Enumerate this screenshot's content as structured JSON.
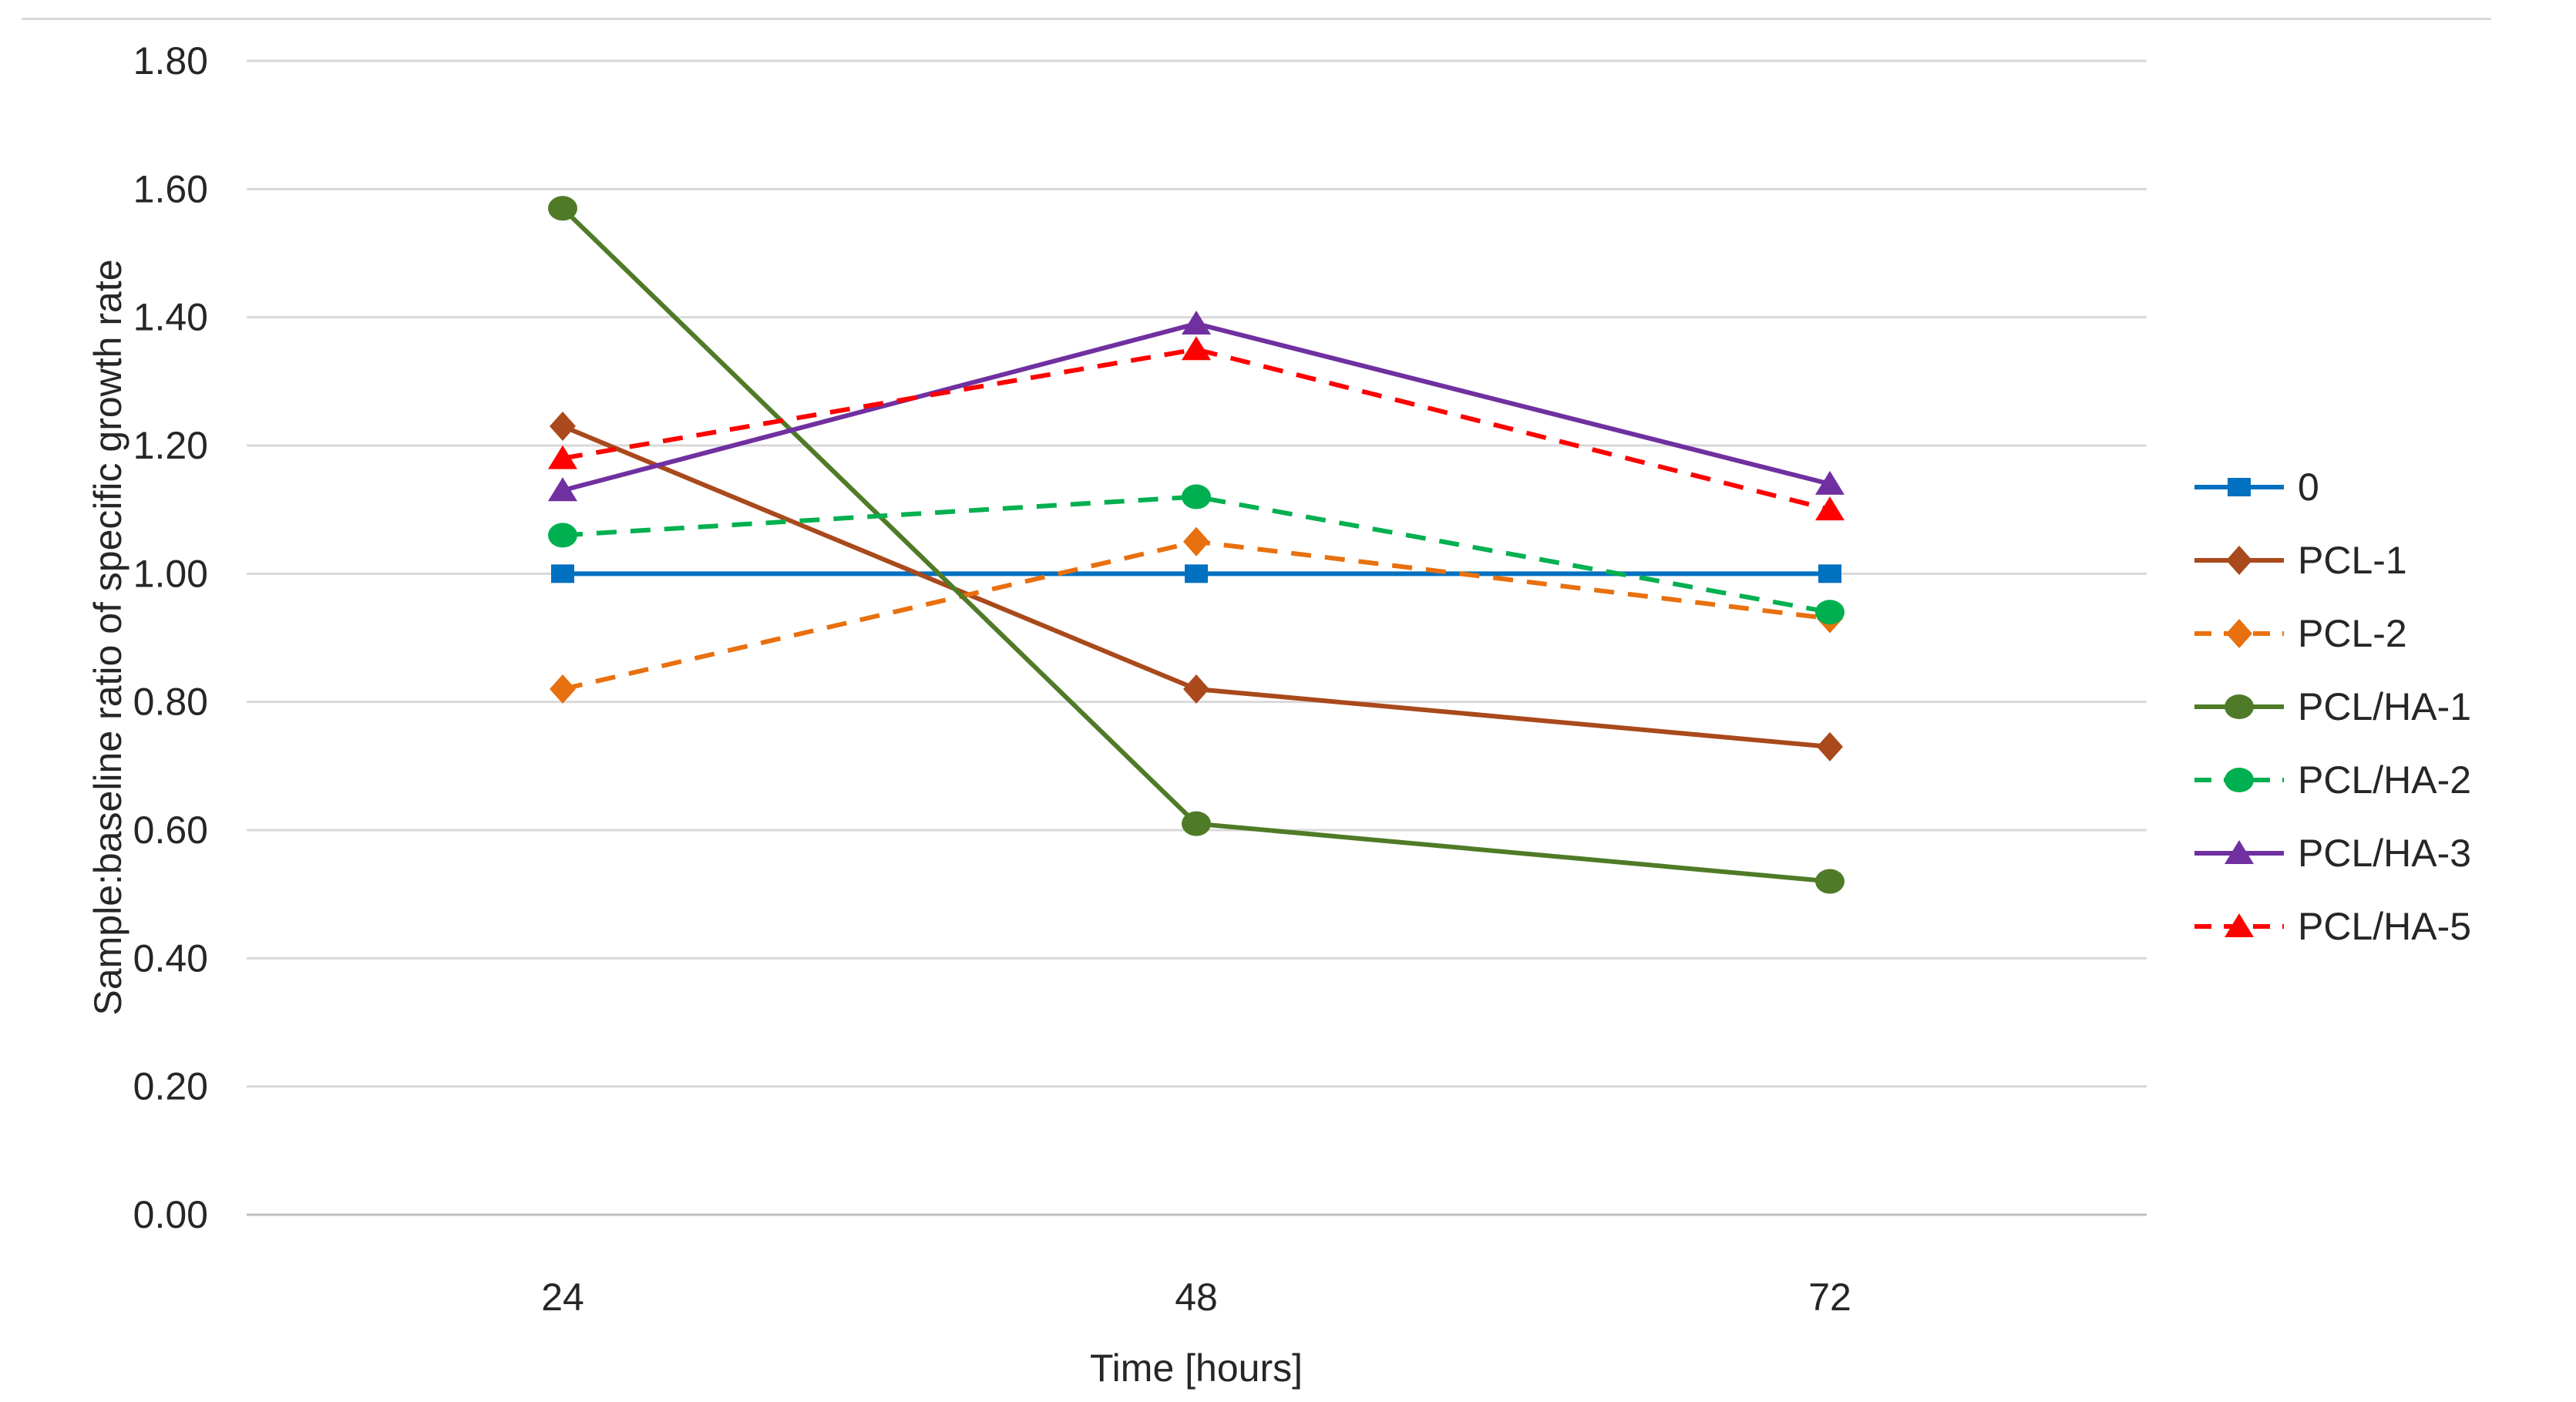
{
  "figure": {
    "background_color": "#FFFFFF",
    "top_border_color": "#D9D9D9"
  },
  "chart_data": {
    "type": "line",
    "title": "",
    "xlabel": "Time [hours]",
    "ylabel": "Sample:baseline ratio of specific growth rate",
    "categories": [
      24,
      48,
      72
    ],
    "x_tick_labels": [
      "24",
      "48",
      "72"
    ],
    "y_ticks": [
      "0.00",
      "0.20",
      "0.40",
      "0.60",
      "0.80",
      "1.00",
      "1.20",
      "1.40",
      "1.60",
      "1.80"
    ],
    "ylim": [
      0.0,
      1.8
    ],
    "y_step": 0.2,
    "grid": "horizontal",
    "gridline_color": "#D9D9D9",
    "axis_line_color": "#BFBFBF",
    "tick_text_color": "#262626",
    "legend_position": "right",
    "series": [
      {
        "name": "0",
        "color": "#0070C0",
        "line_style": "solid",
        "marker": "square",
        "values": [
          1.0,
          1.0,
          1.0
        ]
      },
      {
        "name": "PCL-1",
        "color": "#A9491C",
        "line_style": "solid",
        "marker": "diamond",
        "values": [
          1.23,
          0.82,
          0.73
        ]
      },
      {
        "name": "PCL-2",
        "color": "#E8700E",
        "line_style": "dashed",
        "marker": "diamond",
        "values": [
          0.82,
          1.05,
          0.93
        ]
      },
      {
        "name": "PCL/HA-1",
        "color": "#4F7B28",
        "line_style": "solid",
        "marker": "circle",
        "values": [
          1.57,
          0.61,
          0.52
        ]
      },
      {
        "name": "PCL/HA-2",
        "color": "#00B050",
        "line_style": "dashed",
        "marker": "circle",
        "values": [
          1.06,
          1.12,
          0.94
        ]
      },
      {
        "name": "PCL/HA-3",
        "color": "#7030A0",
        "line_style": "solid",
        "marker": "triangle",
        "values": [
          1.13,
          1.39,
          1.14
        ]
      },
      {
        "name": "PCL/HA-5",
        "color": "#FF0000",
        "line_style": "dashed",
        "marker": "triangle",
        "values": [
          1.18,
          1.35,
          1.1
        ]
      }
    ]
  }
}
